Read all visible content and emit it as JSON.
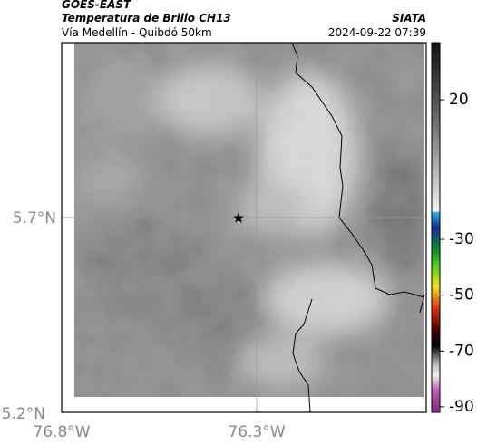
{
  "header": {
    "line1": "GOES-EAST",
    "title": "Temperatura de Brillo CH13",
    "subtitle": "Vía Medellín - Quibdó 50km",
    "source": "SIATA",
    "timestamp": "2024-09-22 07:39"
  },
  "map": {
    "lat_labels": [
      "5.7°N",
      "5.2°N"
    ],
    "lon_labels": [
      "76.8°W",
      "76.3°W"
    ]
  },
  "colorbar": {
    "range": [
      -92,
      40.5
    ],
    "ticks": [
      20,
      -30,
      -50,
      -70,
      -90
    ]
  }
}
